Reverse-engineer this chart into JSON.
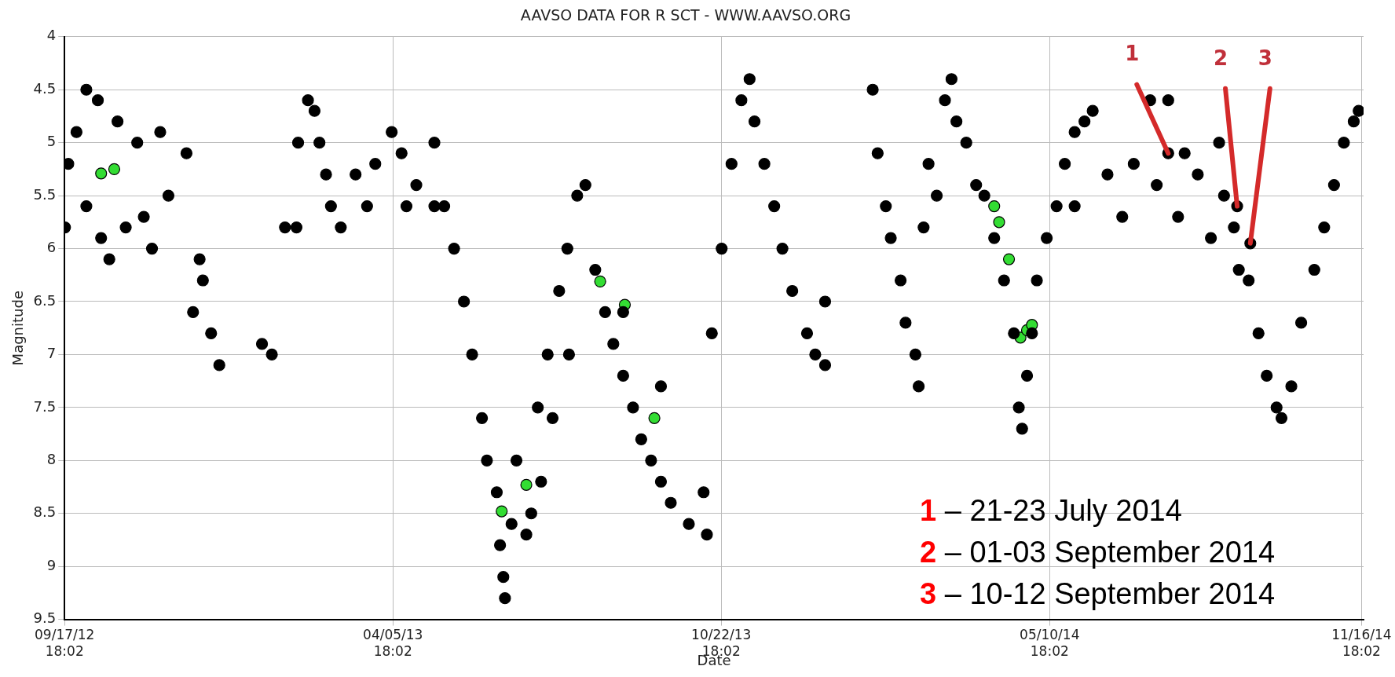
{
  "chart_data": {
    "type": "scatter",
    "title": "AAVSO DATA FOR R SCT - WWW.AAVSO.ORG",
    "xlabel": "Date",
    "ylabel": "Magnitude",
    "xlim": [
      "2012-09-17T18:02",
      "2014-11-18"
    ],
    "xticks": [
      {
        "value": "2012-09-17T18:02",
        "label": "09/17/12 18:02"
      },
      {
        "value": "2013-04-05T18:02",
        "label": "04/05/13 18:02"
      },
      {
        "value": "2013-10-22T18:02",
        "label": "10/22/13 18:02"
      },
      {
        "value": "2014-05-10T18:02",
        "label": "05/10/14 18:02"
      },
      {
        "value": "2014-11-16T18:02",
        "label": "11/16/14 18:02"
      }
    ],
    "ylim": [
      9.5,
      4
    ],
    "yticks": [
      4,
      4.5,
      5,
      5.5,
      6,
      6.5,
      7,
      7.5,
      8,
      8.5,
      9,
      9.5
    ],
    "grid": true,
    "legend": false,
    "marker": "circle",
    "series": [
      {
        "color": "#000000",
        "x": [
          "2012-09-18",
          "2012-09-20",
          "2012-09-25",
          "2012-10-01",
          "2012-10-01",
          "2012-10-08",
          "2012-10-10",
          "2012-10-15",
          "2012-10-20",
          "2012-10-25",
          "2012-11-01",
          "2012-11-05",
          "2012-11-10",
          "2012-11-15",
          "2012-11-20",
          "2012-12-01",
          "2012-12-05",
          "2012-12-09",
          "2012-12-11",
          "2012-12-16",
          "2012-12-21",
          "2013-01-16",
          "2013-01-22",
          "2013-01-30",
          "2013-02-06",
          "2013-02-07",
          "2013-02-13",
          "2013-02-17",
          "2013-02-20",
          "2013-02-24",
          "2013-02-27",
          "2013-03-05",
          "2013-03-14",
          "2013-03-21",
          "2013-03-26",
          "2013-04-05",
          "2013-04-11",
          "2013-04-14",
          "2013-04-20",
          "2013-05-01",
          "2013-05-01",
          "2013-05-07",
          "2013-05-13",
          "2013-05-19",
          "2013-05-24",
          "2013-05-30",
          "2013-06-02",
          "2013-06-08",
          "2013-06-10",
          "2013-06-13",
          "2013-06-12",
          "2013-06-17",
          "2013-06-20",
          "2013-06-26",
          "2013-06-29",
          "2013-07-03",
          "2013-07-05",
          "2013-07-09",
          "2013-07-12",
          "2013-07-16",
          "2013-07-21",
          "2013-07-22",
          "2013-07-27",
          "2013-08-01",
          "2013-08-07",
          "2013-08-13",
          "2013-08-18",
          "2013-08-24",
          "2013-08-24",
          "2013-08-30",
          "2013-09-04",
          "2013-09-10",
          "2013-09-16",
          "2013-09-16",
          "2013-09-22",
          "2013-10-03",
          "2013-10-12",
          "2013-10-14",
          "2013-10-17",
          "2013-10-23",
          "2013-10-29",
          "2013-11-04",
          "2013-11-09",
          "2013-11-12",
          "2013-11-18",
          "2013-11-24",
          "2013-11-29",
          "2013-12-05",
          "2013-12-14",
          "2013-12-19",
          "2013-12-25",
          "2013-12-25",
          "2014-01-23",
          "2014-01-26",
          "2014-01-31",
          "2014-02-03",
          "2014-02-09",
          "2014-02-12",
          "2014-02-18",
          "2014-02-20",
          "2014-02-23",
          "2014-02-26",
          "2014-03-03",
          "2014-03-08",
          "2014-03-12",
          "2014-03-15",
          "2014-03-21",
          "2014-03-27",
          "2014-04-01",
          "2014-04-07",
          "2014-04-13",
          "2014-04-19",
          "2014-04-22",
          "2014-04-24",
          "2014-04-27",
          "2014-04-30",
          "2014-05-03",
          "2014-05-09",
          "2014-05-15",
          "2014-05-20",
          "2014-05-26",
          "2014-05-26",
          "2014-06-01",
          "2014-06-06",
          "2014-06-24",
          "2014-07-11",
          "2014-07-22",
          "2014-07-28",
          "2014-08-09",
          "2014-08-17",
          "2014-08-22",
          "2014-08-31",
          "2014-09-03",
          "2014-09-09",
          "2014-09-15",
          "2014-09-20",
          "2014-09-26",
          "2014-09-29",
          "2014-10-05",
          "2014-10-11",
          "2014-10-19",
          "2014-10-25",
          "2014-10-31",
          "2014-11-06",
          "2014-11-12",
          "2014-11-15",
          "2014-07-22",
          "2014-09-02",
          "2014-09-10",
          "2014-07-01",
          "2014-07-15",
          "2014-08-01",
          "2014-08-25",
          "2014-06-15"
        ],
        "values": [
          5.8,
          5.2,
          4.9,
          4.5,
          5.6,
          4.6,
          5.9,
          6.1,
          4.8,
          5.8,
          5.0,
          5.7,
          6.0,
          4.9,
          5.5,
          5.1,
          6.6,
          6.1,
          6.3,
          6.8,
          7.1,
          6.9,
          7.0,
          5.8,
          5.8,
          5.0,
          4.6,
          4.7,
          5.0,
          5.3,
          5.6,
          5.8,
          5.3,
          5.6,
          5.2,
          4.9,
          5.1,
          5.6,
          5.4,
          5.0,
          5.6,
          5.6,
          6.0,
          6.5,
          7.0,
          7.6,
          8.0,
          8.3,
          8.8,
          9.3,
          9.1,
          8.6,
          8.0,
          8.7,
          8.5,
          7.5,
          8.2,
          7.0,
          7.6,
          6.4,
          6.0,
          7.0,
          5.5,
          5.4,
          6.2,
          6.6,
          6.9,
          7.2,
          6.6,
          7.5,
          7.8,
          8.0,
          8.2,
          7.3,
          8.4,
          8.6,
          8.3,
          8.7,
          6.8,
          6.0,
          5.2,
          4.6,
          4.4,
          4.8,
          5.2,
          5.6,
          6.0,
          6.4,
          6.8,
          7.0,
          7.1,
          6.5,
          4.5,
          5.1,
          5.6,
          5.9,
          6.3,
          6.7,
          7.0,
          7.3,
          5.8,
          5.2,
          5.5,
          4.6,
          4.4,
          4.8,
          5.0,
          5.4,
          5.5,
          5.9,
          6.3,
          6.8,
          7.5,
          7.7,
          7.2,
          6.8,
          6.3,
          5.9,
          5.6,
          5.2,
          4.9,
          5.6,
          4.8,
          4.7,
          5.7,
          4.6,
          4.6,
          5.7,
          5.3,
          5.9,
          5.0,
          5.8,
          6.2,
          6.3,
          6.8,
          7.2,
          7.5,
          7.6,
          7.3,
          6.7,
          6.2,
          5.8,
          5.4,
          5.0,
          4.8,
          4.7,
          5.1,
          5.6,
          5.95,
          5.2,
          5.4,
          5.1,
          5.5,
          5.3
        ]
      },
      {
        "color": "#33dd33",
        "x": [
          "2012-10-10",
          "2012-10-18",
          "2013-06-11",
          "2013-06-26",
          "2013-08-10",
          "2013-08-25",
          "2013-09-12",
          "2014-04-07",
          "2014-04-10",
          "2014-04-16",
          "2014-04-23",
          "2014-04-27",
          "2014-04-30"
        ],
        "values": [
          5.29,
          5.25,
          8.48,
          8.23,
          6.31,
          6.53,
          7.6,
          5.6,
          5.75,
          6.1,
          6.84,
          6.77,
          6.72
        ]
      }
    ],
    "annotations": [
      {
        "text": "1",
        "x": "2014-07-22",
        "y": 5.1
      },
      {
        "text": "2",
        "x": "2014-09-02",
        "y": 5.6
      },
      {
        "text": "3",
        "x": "2014-09-10",
        "y": 5.95
      },
      "1 – 21-23 July 2014",
      "2 – 01-03 September 2014",
      "3 – 10-12 September 2014"
    ]
  }
}
